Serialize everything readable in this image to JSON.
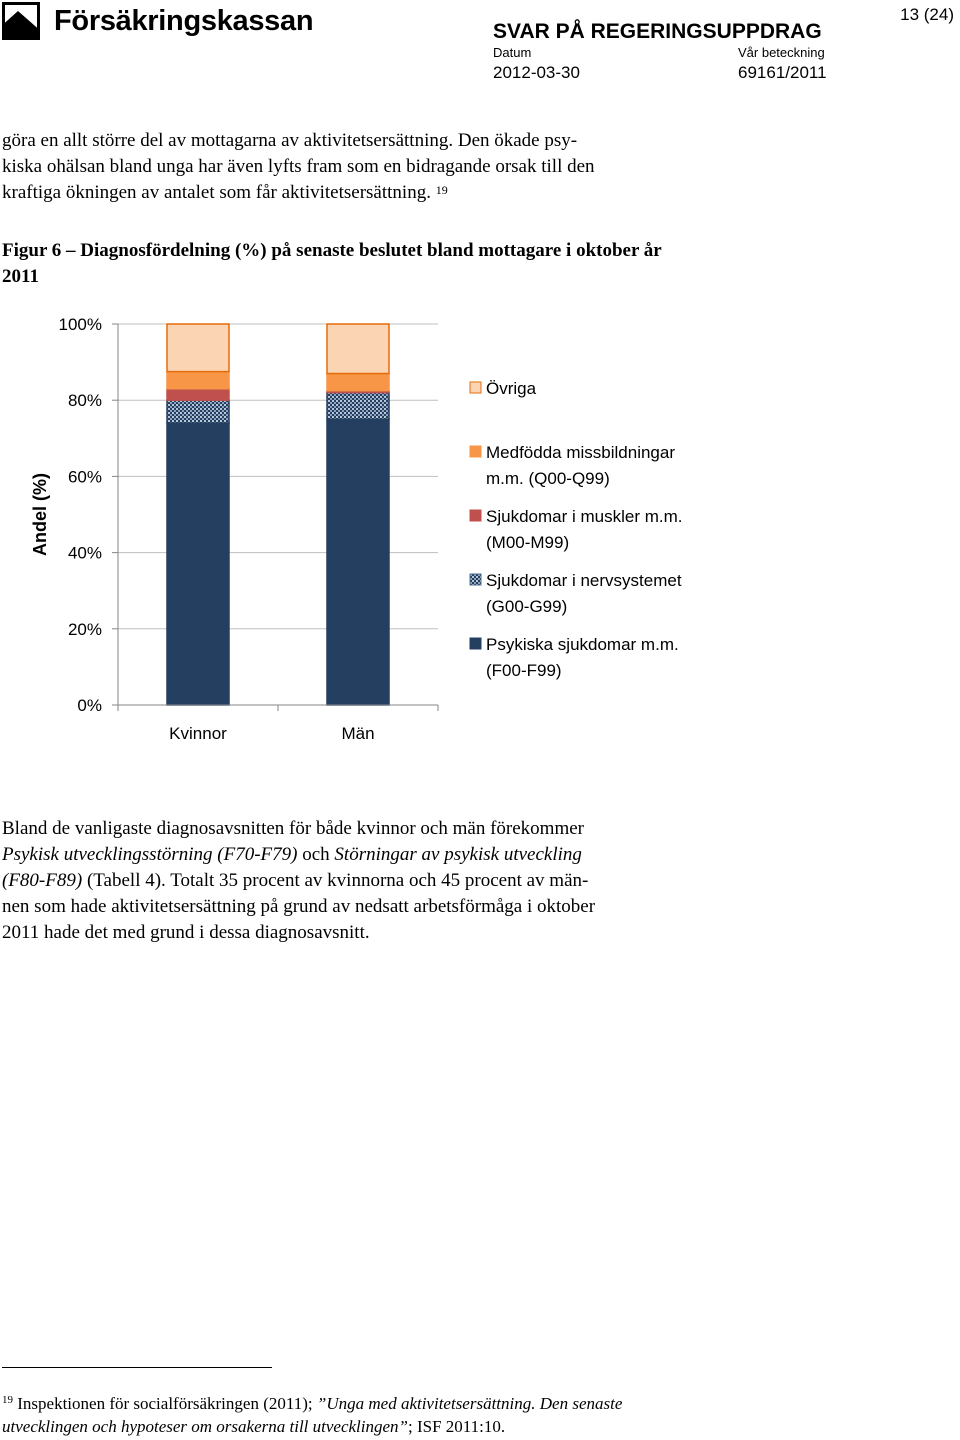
{
  "header": {
    "logo_name": "Försäkringskassan",
    "page_number": "13 (24)",
    "doc_title": "SVAR PÅ REGERINGSUPPDRAG",
    "date_label": "Datum",
    "date_value": "2012-03-30",
    "ref_label": "Vår beteckning",
    "ref_value": "69161/2011"
  },
  "intro_paragraph": {
    "line1": "göra en allt större del av mottagarna av aktivitetsersättning. Den ökade psy-",
    "line2": "kiska ohälsan bland unga har även lyfts fram som en bidragande orsak till den",
    "line3": "kraftiga ökningen av antalet som får aktivitetsersättning.",
    "footnote_ref": "19"
  },
  "figure_caption": {
    "line1": "Figur 6 – Diagnosfördelning (%) på senaste beslutet bland mottagare i oktober år",
    "line2": "2011"
  },
  "chart_data": {
    "type": "bar",
    "stacked": true,
    "categories": [
      "Kvinnor",
      "Män"
    ],
    "ylabel": "Andel (%)",
    "ylim": [
      0,
      100
    ],
    "yticks": [
      "0%",
      "20%",
      "40%",
      "60%",
      "80%",
      "100%"
    ],
    "legend_position": "right",
    "series": [
      {
        "name": "Psykiska sjukdomar m.m. (F00-F99)",
        "legend_line1": "Psykiska sjukdomar m.m.",
        "legend_line2": "(F00-F99)",
        "values": [
          74,
          75
        ],
        "color": "#243F60",
        "pattern": "solid"
      },
      {
        "name": "Sjukdomar i nervsystemet (G00-G99)",
        "legend_line1": "Sjukdomar i nervsystemet",
        "legend_line2": "(G00-G99)",
        "values": [
          6,
          7
        ],
        "color": "#4F6D8F",
        "pattern": "dotted"
      },
      {
        "name": "Sjukdomar i muskler m.m. (M00-M99)",
        "legend_line1": "Sjukdomar i muskler m.m.",
        "legend_line2": "(M00-M99)",
        "values": [
          3,
          0.5
        ],
        "color": "#C0504D",
        "pattern": "solid"
      },
      {
        "name": "Medfödda missbildningar m.m. (Q00-Q99)",
        "legend_line1": "Medfödda missbildningar",
        "legend_line2": "m.m. (Q00-Q99)",
        "values": [
          4.5,
          4.5
        ],
        "color": "#F79646",
        "pattern": "solid"
      },
      {
        "name": "Övriga",
        "legend_line1": "Övriga",
        "legend_line2": "",
        "values": [
          12.5,
          13
        ],
        "color": "#FBD4B4",
        "pattern": "solid"
      }
    ]
  },
  "body_paragraph": {
    "l1": "Bland de vanligaste diagnosavsnitten för både kvinnor och män förekommer",
    "l2_italic1": "Psykisk utvecklingsstörning (F70-F79)",
    "l2_mid": " och ",
    "l2_italic2": "Störningar av psykisk utveckling",
    "l3_italic": "(F80-F89)",
    "l3_rest": " (Tabell 4). Totalt 35 procent av kvinnorna och 45 procent av män-",
    "l4": "nen som hade aktivitetsersättning på grund av nedsatt arbetsförmåga i oktober",
    "l5": "2011 hade det med grund i dessa diagnosavsnitt."
  },
  "footnote": {
    "number": "19",
    "text1": " Inspektionen för socialförsäkringen (2011); ",
    "quote_open": "”",
    "title_italic1": "Unga med aktivitetsersättning. Den senaste",
    "title_italic2": "utvecklingen och hypoteser om orsakerna till utvecklingen",
    "quote_close": "”",
    "tail": "; ISF 2011:10."
  }
}
